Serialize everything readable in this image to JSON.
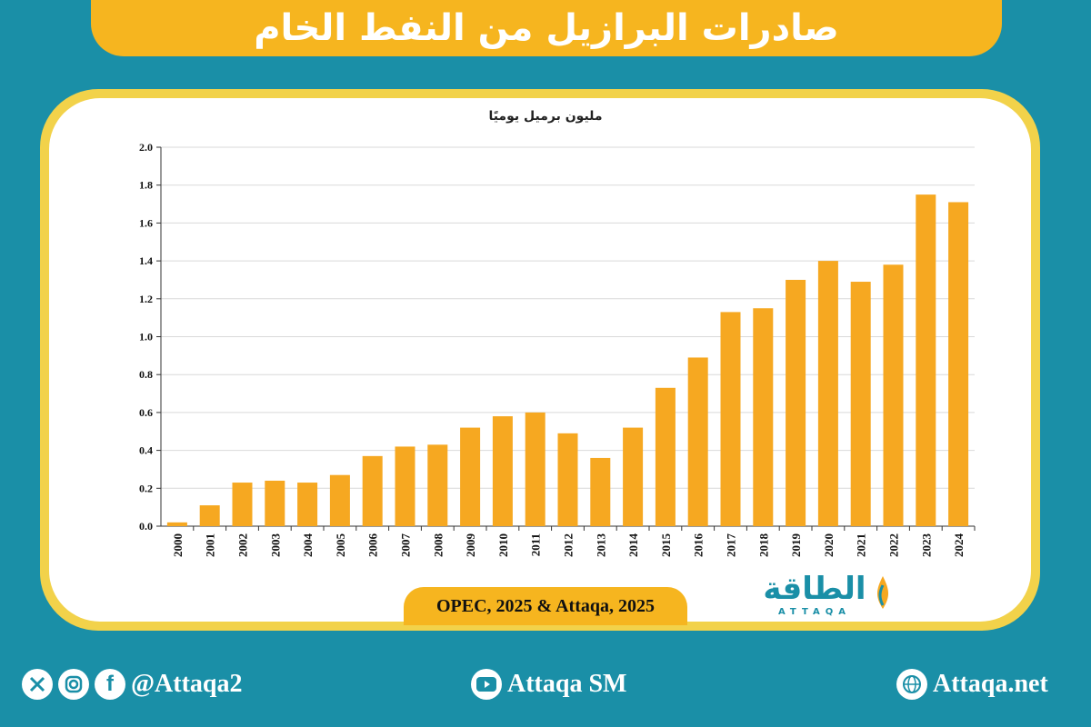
{
  "header": {
    "title": "صادرات البرازيل من النفط الخام"
  },
  "chart_data": {
    "type": "bar",
    "ylabel": "مليون برميل يوميًا",
    "categories": [
      "2000",
      "2001",
      "2002",
      "2003",
      "2004",
      "2005",
      "2006",
      "2007",
      "2008",
      "2009",
      "2010",
      "2011",
      "2012",
      "2013",
      "2014",
      "2015",
      "2016",
      "2017",
      "2018",
      "2019",
      "2020",
      "2021",
      "2022",
      "2023",
      "2024"
    ],
    "values": [
      0.02,
      0.11,
      0.23,
      0.24,
      0.23,
      0.27,
      0.37,
      0.42,
      0.43,
      0.52,
      0.58,
      0.6,
      0.49,
      0.36,
      0.52,
      0.73,
      0.89,
      1.13,
      1.15,
      1.3,
      1.4,
      1.29,
      1.38,
      1.75,
      1.71
    ],
    "ylim": [
      0,
      2.0
    ],
    "yticks": [
      "0.0",
      "0.2",
      "0.4",
      "0.6",
      "0.8",
      "1.0",
      "1.2",
      "1.4",
      "1.6",
      "1.8",
      "2.0"
    ],
    "grid": true,
    "bar_color": "#f6a821"
  },
  "source": "OPEC, 2025 & Attaqa, 2025",
  "logo": {
    "arabic": "الطاقة",
    "latin": "ATTAQA"
  },
  "footer": {
    "social_handle": "@Attaqa2",
    "youtube": "Attaqa SM",
    "website": "Attaqa.net",
    "icons": [
      "x-icon",
      "instagram-icon",
      "facebook-icon",
      "youtube-icon",
      "globe-icon"
    ]
  },
  "colors": {
    "background": "#1a8fa7",
    "accent": "#f6b51f",
    "card_border": "#f2d24a"
  }
}
